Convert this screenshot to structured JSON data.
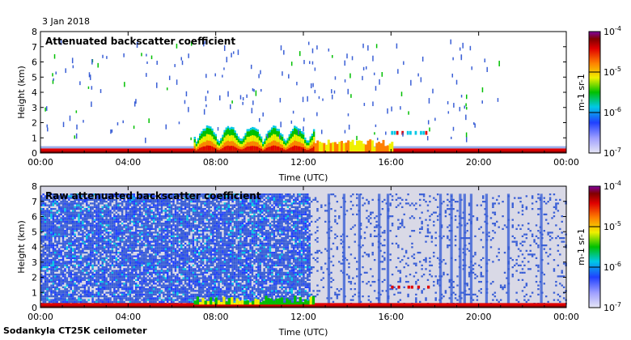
{
  "date_label": "3 Jan 2018",
  "instrument_label": "Sodankyla CT25K ceilometer",
  "colors": {
    "background_low": "#d9d9e6",
    "noise": "#3a5fd6",
    "cyan": "#00c8e6",
    "green": "#00c000",
    "yellow": "#f0f000",
    "orange": "#ff8000",
    "red": "#e00000",
    "darkred": "#800000",
    "purple": "#8000a0"
  },
  "chart_data": [
    {
      "type": "heatmap",
      "title": "Attenuated backscatter coefficient",
      "xlabel": "Time (UTC)",
      "ylabel": "Height (km)",
      "xlim": [
        0,
        24
      ],
      "ylim": [
        0,
        8
      ],
      "x_tick_labels": [
        "00:00",
        "04:00",
        "08:00",
        "12:00",
        "16:00",
        "20:00",
        "00:00"
      ],
      "x_ticks_hours": [
        0,
        4,
        8,
        12,
        16,
        20,
        24
      ],
      "y_ticks": [
        "0",
        "1",
        "2",
        "3",
        "4",
        "5",
        "6",
        "7",
        "8"
      ],
      "colorbar": {
        "label": "m-1 sr-1",
        "scale": "log",
        "range": [
          1e-07,
          0.0001
        ],
        "tick_labels": [
          "10-7",
          "10-6",
          "10-5",
          "10-4"
        ]
      },
      "features": {
        "surface_layer_top_km": 0.3,
        "snow_clouds_hours": [
          7,
          12.5
        ],
        "snow_clouds_top_km": 1.5,
        "low_cloud_hours": [
          16.0,
          17.8
        ],
        "low_cloud_height_km": 1.3
      }
    },
    {
      "type": "heatmap",
      "title": "Raw attenuated backscatter coefficient",
      "xlabel": "Time (UTC)",
      "ylabel": "Height (km)",
      "xlim": [
        0,
        24
      ],
      "ylim": [
        0,
        8
      ],
      "x_tick_labels": [
        "00:00",
        "04:00",
        "08:00",
        "12:00",
        "16:00",
        "20:00",
        "00:00"
      ],
      "x_ticks_hours": [
        0,
        4,
        8,
        12,
        16,
        20,
        24
      ],
      "y_ticks": [
        "0",
        "1",
        "2",
        "3",
        "4",
        "5",
        "6",
        "7",
        "8"
      ],
      "colorbar": {
        "label": "m-1 sr-1",
        "scale": "log",
        "range": [
          1e-07,
          0.0001
        ],
        "tick_labels": [
          "10-7",
          "10-6",
          "10-5",
          "10-4"
        ]
      },
      "features": {
        "noise_top_km": 7.5,
        "dense_noise_hours": [
          0,
          12.3
        ],
        "sparse_noise_hours": [
          12.3,
          24
        ]
      }
    }
  ]
}
